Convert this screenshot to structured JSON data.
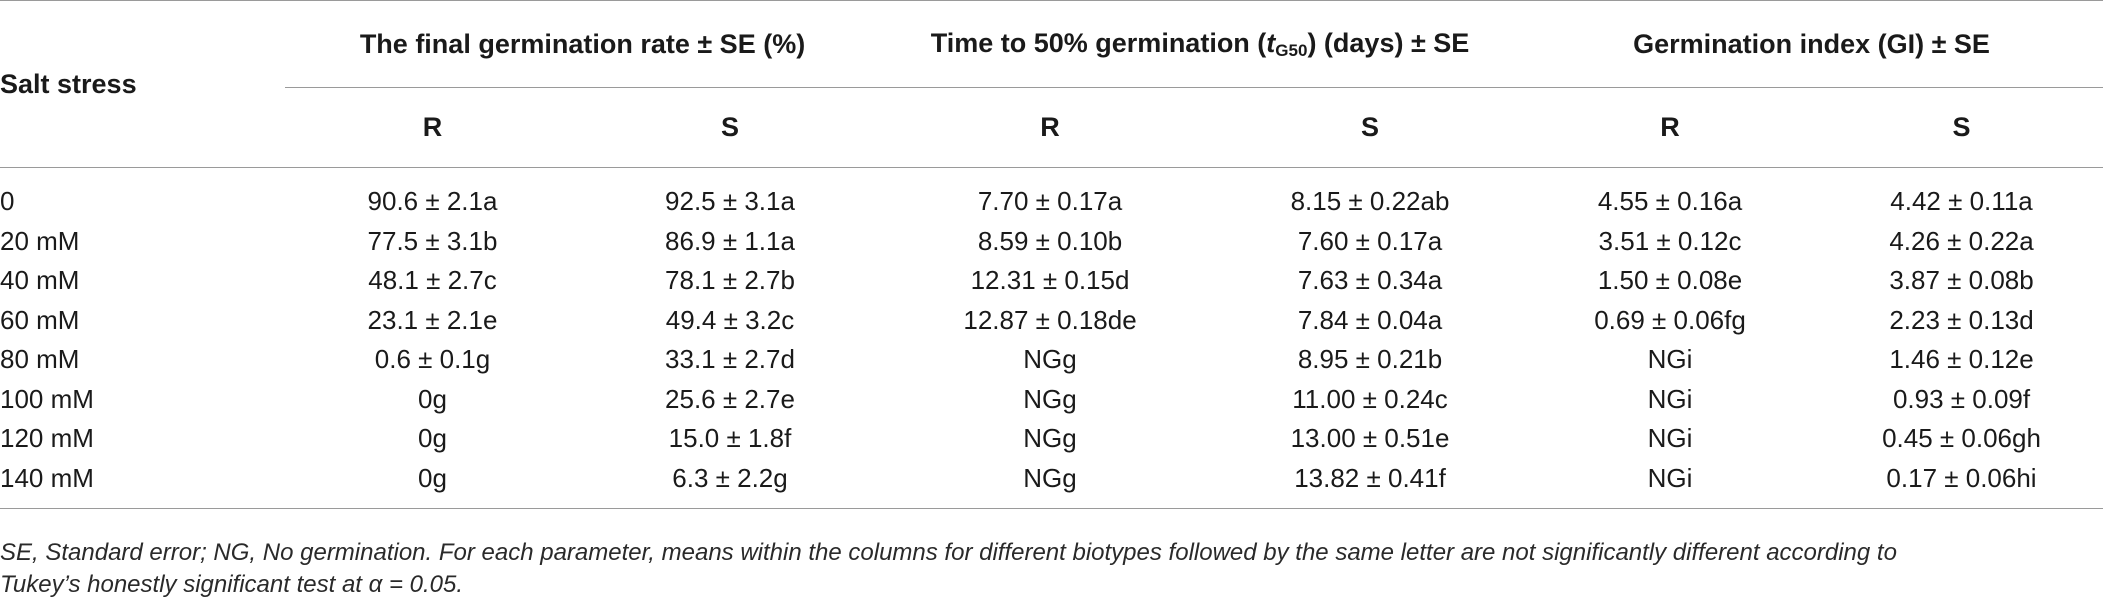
{
  "table": {
    "stub_header": "Salt stress",
    "group_headers": [
      {
        "text": "The final germination rate ± SE (%)"
      },
      {
        "pre": "Time to 50% germination (",
        "italic": "t",
        "sub": "G50",
        "post": ") (days) ± SE"
      },
      {
        "text": "Germination index (GI) ± SE"
      }
    ],
    "sub_headers": [
      "R",
      "S",
      "R",
      "S",
      "R",
      "S"
    ],
    "rows": [
      {
        "salt": "0",
        "cells": [
          "90.6 ± 2.1a",
          "92.5 ± 3.1a",
          "7.70 ± 0.17a",
          "8.15 ± 0.22ab",
          "4.55 ± 0.16a",
          "4.42 ± 0.11a"
        ]
      },
      {
        "salt": "20 mM",
        "cells": [
          "77.5 ± 3.1b",
          "86.9 ± 1.1a",
          "8.59 ± 0.10b",
          "7.60 ± 0.17a",
          "3.51 ± 0.12c",
          "4.26 ± 0.22a"
        ]
      },
      {
        "salt": "40 mM",
        "cells": [
          "48.1 ± 2.7c",
          "78.1 ± 2.7b",
          "12.31 ± 0.15d",
          "7.63 ± 0.34a",
          "1.50 ± 0.08e",
          "3.87 ± 0.08b"
        ]
      },
      {
        "salt": "60 mM",
        "cells": [
          "23.1 ± 2.1e",
          "49.4 ± 3.2c",
          "12.87 ± 0.18de",
          "7.84 ± 0.04a",
          "0.69 ± 0.06fg",
          "2.23 ± 0.13d"
        ]
      },
      {
        "salt": "80 mM",
        "cells": [
          "0.6 ± 0.1g",
          "33.1 ± 2.7d",
          "NGg",
          "8.95 ± 0.21b",
          "NGi",
          "1.46 ± 0.12e"
        ]
      },
      {
        "salt": "100 mM",
        "cells": [
          "0g",
          "25.6 ± 2.7e",
          "NGg",
          "11.00 ± 0.24c",
          "NGi",
          "0.93 ± 0.09f"
        ]
      },
      {
        "salt": "120 mM",
        "cells": [
          "0g",
          "15.0 ± 1.8f",
          "NGg",
          "13.00 ± 0.51e",
          "NGi",
          "0.45 ± 0.06gh"
        ]
      },
      {
        "salt": "140 mM",
        "cells": [
          "0g",
          "6.3 ± 2.2g",
          "NGg",
          "13.82 ± 0.41f",
          "NGi",
          "0.17 ± 0.06hi"
        ]
      }
    ]
  },
  "footnote": {
    "line1": "SE, Standard error; NG, No germination. For each parameter, means within the columns for different biotypes followed by the same letter are not significantly different according to",
    "line2": "Tukey’s honestly significant test at α = 0.05."
  }
}
